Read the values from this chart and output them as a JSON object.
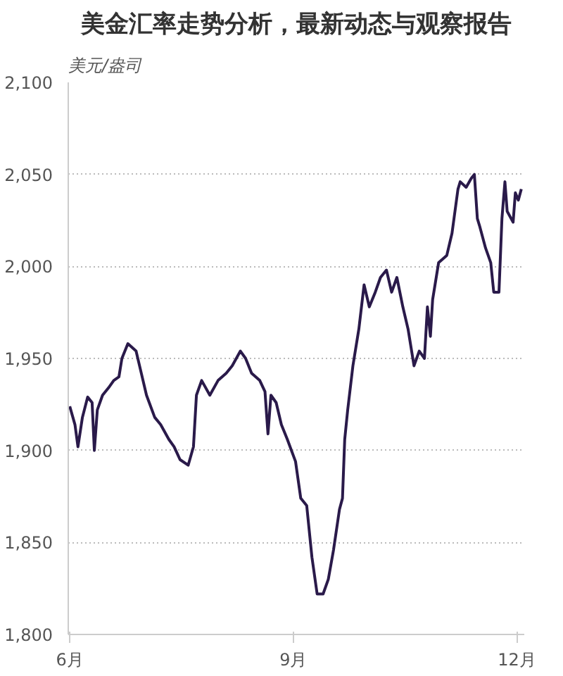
{
  "chart_data": {
    "type": "line",
    "title": "美金汇率走势分析，最新动态与观察报告",
    "ylabel": "美元/盎司",
    "xlim": [
      5.98,
      12.1
    ],
    "xticks": [
      {
        "value": 6,
        "label": "6月"
      },
      {
        "value": 9,
        "label": "9月"
      },
      {
        "value": 12,
        "label": "12月"
      }
    ],
    "ylim": [
      1800,
      2100
    ],
    "yticks": [
      {
        "value": 1800,
        "label": "1,800"
      },
      {
        "value": 1850,
        "label": "1,850"
      },
      {
        "value": 1900,
        "label": "1,900"
      },
      {
        "value": 1950,
        "label": "1,950"
      },
      {
        "value": 2000,
        "label": "2,000"
      },
      {
        "value": 2050,
        "label": "2,050"
      },
      {
        "value": 2100,
        "label": "2,100"
      }
    ],
    "grid": "y",
    "marker": "none",
    "line_style": "solid",
    "series": [
      {
        "color": "#2a1a4a",
        "x": [
          6.0,
          6.07,
          6.11,
          6.17,
          6.24,
          6.3,
          6.33,
          6.37,
          6.44,
          6.52,
          6.59,
          6.66,
          6.7,
          6.78,
          6.89,
          6.96,
          7.03,
          7.14,
          7.22,
          7.33,
          7.4,
          7.48,
          7.59,
          7.66,
          7.7,
          7.77,
          7.88,
          7.99,
          8.1,
          8.18,
          8.29,
          8.36,
          8.44,
          8.55,
          8.62,
          8.66,
          8.7,
          8.77,
          8.84,
          8.92,
          9.03,
          9.1,
          9.18,
          9.25,
          9.32,
          9.4,
          9.47,
          9.54,
          9.62,
          9.66,
          9.69,
          9.73,
          9.8,
          9.88,
          9.95,
          10.02,
          10.1,
          10.17,
          10.25,
          10.32,
          10.39,
          10.47,
          10.54,
          10.62,
          10.69,
          10.76,
          10.8,
          10.84,
          10.87,
          10.95,
          11.06,
          11.13,
          11.21,
          11.24,
          11.32,
          11.39,
          11.43,
          11.47,
          11.5,
          11.58,
          11.65,
          11.69,
          11.76,
          11.8,
          11.84,
          11.87,
          11.95,
          11.98,
          12.02,
          12.06
        ],
        "values": [
          1924,
          1914,
          1902,
          1918,
          1929,
          1926,
          1900,
          1922,
          1930,
          1934,
          1938,
          1940,
          1950,
          1958,
          1954,
          1942,
          1930,
          1918,
          1914,
          1906,
          1902,
          1895,
          1892,
          1902,
          1930,
          1938,
          1930,
          1938,
          1942,
          1946,
          1954,
          1950,
          1942,
          1938,
          1932,
          1909,
          1930,
          1926,
          1914,
          1906,
          1894,
          1874,
          1870,
          1842,
          1822,
          1822,
          1830,
          1846,
          1868,
          1874,
          1906,
          1922,
          1946,
          1966,
          1990,
          1978,
          1986,
          1994,
          1998,
          1986,
          1994,
          1978,
          1966,
          1946,
          1954,
          1950,
          1978,
          1962,
          1982,
          2002,
          2006,
          2018,
          2042,
          2046,
          2043,
          2048,
          2050,
          2026,
          2022,
          2010,
          2002,
          1986,
          1986,
          2026,
          2046,
          2030,
          2024,
          2040,
          2036,
          2042
        ]
      }
    ]
  }
}
